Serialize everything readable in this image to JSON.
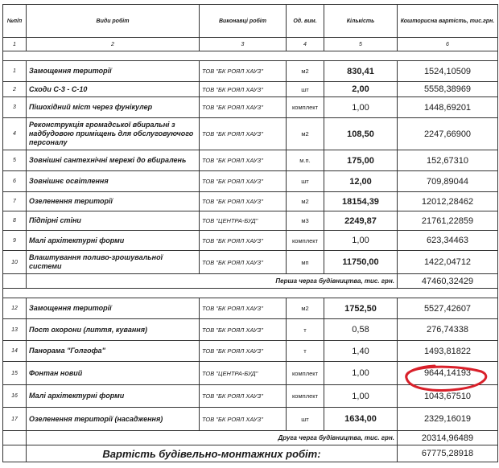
{
  "headers": [
    "№п/п",
    "Види робіт",
    "Виконавці робіт",
    "Од. вим.",
    "Кількість",
    "Кошторисна вартість, тис.грн."
  ],
  "column_numbers": [
    "1",
    "2",
    "3",
    "4",
    "5",
    "6"
  ],
  "section1": {
    "rows": [
      {
        "n": "1",
        "work": "Замощення території",
        "contractor": "ТОВ \"БК РОЯЛ ХАУЗ\"",
        "unit": "м2",
        "qty": "830,41",
        "cost": "1524,10509"
      },
      {
        "n": "2",
        "work": "Сходи  С-3 - С-10",
        "contractor": "ТОВ \"БК РОЯЛ ХАУЗ\"",
        "unit": "шт",
        "qty": "2,00",
        "cost": "5558,38969"
      },
      {
        "n": "3",
        "work": "Пішохідний міст через фунікулер",
        "contractor": "ТОВ \"БК РОЯЛ ХАУЗ\"",
        "unit": "комплект",
        "qty": "1,00",
        "cost": "1448,69201"
      },
      {
        "n": "4",
        "work": "Реконструкція громадської вбиральні з надбудовою приміщень для обслуговуючого персоналу",
        "contractor": "ТОВ \"БК РОЯЛ ХАУЗ\"",
        "unit": "м2",
        "qty": "108,50",
        "cost": "2247,66900"
      },
      {
        "n": "5",
        "work": "Зовнішні сантехнічні мережі до вбиралень",
        "contractor": "ТОВ \"БК РОЯЛ ХАУЗ\"",
        "unit": "м.п.",
        "qty": "175,00",
        "cost": "152,67310"
      },
      {
        "n": "6",
        "work": "Зовнішнє освітлення",
        "contractor": "ТОВ \"БК РОЯЛ ХАУЗ\"",
        "unit": "шт",
        "qty": "12,00",
        "cost": "709,89044"
      },
      {
        "n": "7",
        "work": "Озеленення території",
        "contractor": "ТОВ \"БК РОЯЛ ХАУЗ\"",
        "unit": "м2",
        "qty": "18154,39",
        "cost": "12012,28462"
      },
      {
        "n": "8",
        "work": "Підпірні стіни",
        "contractor": "ТОВ \"ЦЕНТРА-БУД\"",
        "unit": "м3",
        "qty": "2249,87",
        "cost": "21761,22859"
      },
      {
        "n": "9",
        "work": "Малі архітектурні форми",
        "contractor": "ТОВ \"БК РОЯЛ ХАУЗ\"",
        "unit": "комплект",
        "qty": "1,00",
        "cost": "623,34463"
      },
      {
        "n": "10",
        "work": "Влаштування поливо-зрошувальної системи",
        "contractor": "ТОВ \"БК РОЯЛ ХАУЗ\"",
        "unit": "мп",
        "qty": "11750,00",
        "cost": "1422,04712"
      }
    ],
    "subtotal_label": "Перша черга будівництва, тис. грн.",
    "subtotal_value": "47460,32429"
  },
  "section2": {
    "rows": [
      {
        "n": "12",
        "work": "Замощення території",
        "contractor": "ТОВ \"БК РОЯЛ ХАУЗ\"",
        "unit": "м2",
        "qty": "1752,50",
        "cost": "5527,42607"
      },
      {
        "n": "13",
        "work": "Пост охорони (лиття, кування)",
        "contractor": "ТОВ \"БК РОЯЛ ХАУЗ\"",
        "unit": "т",
        "qty": "0,58",
        "cost": "276,74338"
      },
      {
        "n": "14",
        "work": "Панорама \"Голгофа\"",
        "contractor": "ТОВ \"БК РОЯЛ ХАУЗ\"",
        "unit": "т",
        "qty": "1,40",
        "cost": "1493,81822"
      },
      {
        "n": "15",
        "work": "Фонтан новий",
        "contractor": "ТОВ \"ЦЕНТРА-БУД\"",
        "unit": "комплект",
        "qty": "1,00",
        "cost": "9644,14193"
      },
      {
        "n": "16",
        "work": "Малі архітектурні форми",
        "contractor": "ТОВ \"БК РОЯЛ ХАУЗ\"",
        "unit": "комплект",
        "qty": "1,00",
        "cost": "1043,67510"
      },
      {
        "n": "17",
        "work": "Озеленення території (насадження)",
        "contractor": "ТОВ \"БК РОЯЛ ХАУЗ\"",
        "unit": "шт",
        "qty": "1634,00",
        "cost": "2329,16019"
      }
    ],
    "subtotal_label": "Друга черга будівництва, тис. грн.",
    "subtotal_value": "20314,96489"
  },
  "total_label": "Вартість будівельно-монтажних робіт:",
  "total_value": "67775,28918",
  "highlight_color": "#d9202a"
}
